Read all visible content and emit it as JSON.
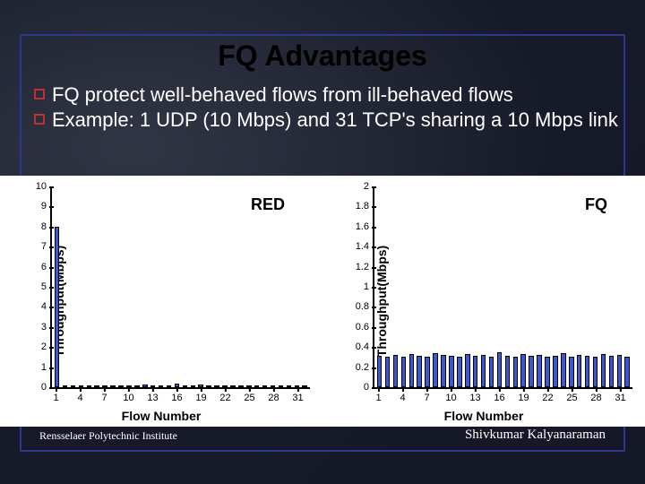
{
  "title": {
    "text": "FQ Advantages",
    "color": "#000000",
    "fontsize": 32
  },
  "bullets": {
    "marker_border_color": "#c03030",
    "text_color": "#ffffff",
    "fontsize": 22,
    "items": [
      "FQ protect well-behaved flows from ill-behaved flows",
      "Example: 1 UDP (10 Mbps) and 31 TCP's sharing a 10 Mbps link"
    ]
  },
  "charts_panel": {
    "background": "#ffffff"
  },
  "chart_left": {
    "type": "bar",
    "legend": "RED",
    "legend_fontsize": 18,
    "ylabel": "Throughput(Mbps)",
    "xlabel": "Flow Number",
    "label_fontsize": 14,
    "tick_fontsize": 11,
    "ylim": [
      0,
      10
    ],
    "yticks": [
      0,
      1,
      2,
      3,
      4,
      5,
      6,
      7,
      8,
      9,
      10
    ],
    "xticks": [
      1,
      4,
      7,
      10,
      13,
      16,
      19,
      22,
      25,
      28,
      31
    ],
    "n_bars": 32,
    "values": [
      8.0,
      0.05,
      0.05,
      0.05,
      0.05,
      0.05,
      0.05,
      0.05,
      0.05,
      0.05,
      0.05,
      0.12,
      0.05,
      0.05,
      0.05,
      0.18,
      0.05,
      0.05,
      0.14,
      0.05,
      0.05,
      0.05,
      0.05,
      0.05,
      0.05,
      0.05,
      0.05,
      0.05,
      0.05,
      0.05,
      0.05,
      0.05
    ],
    "bar_color": "#3a57d6",
    "bar_border": "#000000",
    "axis_color": "#000000"
  },
  "chart_right": {
    "type": "bar",
    "legend": "FQ",
    "legend_fontsize": 18,
    "ylabel": "Throughput(Mbps)",
    "xlabel": "Flow Number",
    "label_fontsize": 14,
    "tick_fontsize": 11,
    "ylim": [
      0,
      2
    ],
    "yticks": [
      0,
      0.2,
      0.4,
      0.6,
      0.8,
      1,
      1.2,
      1.4,
      1.6,
      1.8,
      2
    ],
    "xticks": [
      1,
      4,
      7,
      10,
      13,
      16,
      19,
      22,
      25,
      28,
      31
    ],
    "n_bars": 32,
    "values": [
      0.31,
      0.3,
      0.32,
      0.3,
      0.33,
      0.31,
      0.3,
      0.34,
      0.32,
      0.31,
      0.3,
      0.33,
      0.31,
      0.32,
      0.3,
      0.35,
      0.31,
      0.3,
      0.33,
      0.31,
      0.32,
      0.3,
      0.31,
      0.34,
      0.3,
      0.32,
      0.31,
      0.3,
      0.33,
      0.31,
      0.32,
      0.3
    ],
    "bar_color": "#3a57d6",
    "bar_border": "#000000",
    "axis_color": "#000000"
  },
  "footer": {
    "left": "Rensselaer Polytechnic Institute",
    "right": "Shivkumar Kalyanaraman",
    "color": "#ffffff",
    "left_fontsize": 12,
    "right_fontsize": 15
  },
  "slide_border_color": "#2a3a8a"
}
